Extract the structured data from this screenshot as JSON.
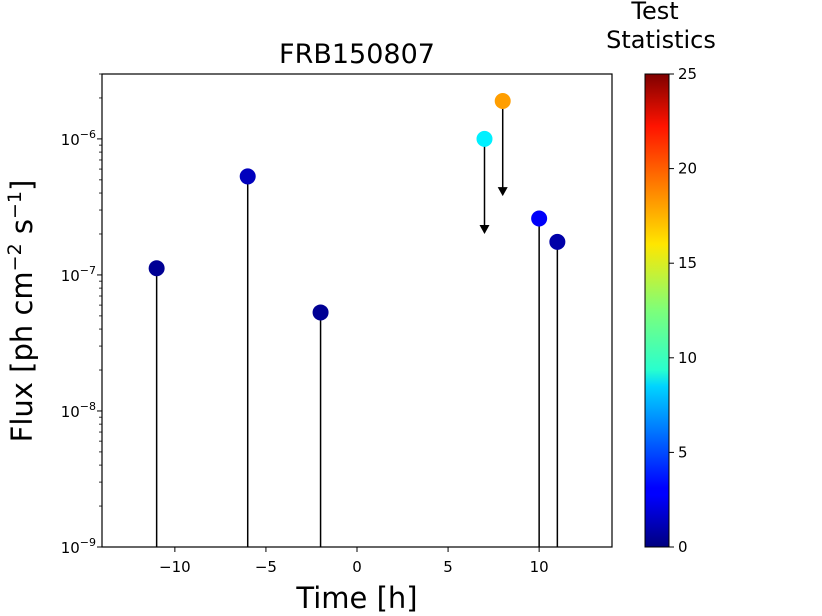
{
  "chart_data": {
    "type": "scatter",
    "title": "FRB150807",
    "xlabel": "Time [h]",
    "ylabel": "Flux [ph cm",
    "ylabel_sup1": "−2",
    "ylabel_mid": " s",
    "ylabel_sup2": "−1",
    "ylabel_end": "]",
    "xlim": [
      -14,
      14
    ],
    "ylim": [
      1e-09,
      3e-06
    ],
    "yscale": "log",
    "xticks": [
      -10,
      -5,
      0,
      5,
      10
    ],
    "xtick_labels": [
      "−10",
      "−5",
      "0",
      "5",
      "10"
    ],
    "yticks": [
      {
        "value": 1e-09,
        "base": "10",
        "exp": "−9"
      },
      {
        "value": 1e-08,
        "base": "10",
        "exp": "−8"
      },
      {
        "value": 1e-07,
        "base": "10",
        "exp": "−7"
      },
      {
        "value": 1e-06,
        "base": "10",
        "exp": "−6"
      }
    ],
    "points": [
      {
        "x": -11,
        "y": 1.12e-07,
        "ts": 0.5,
        "kind": "detection"
      },
      {
        "x": -6,
        "y": 5.3e-07,
        "ts": 1.5,
        "kind": "detection"
      },
      {
        "x": -2,
        "y": 5.3e-08,
        "ts": 0.5,
        "kind": "detection"
      },
      {
        "x": 7,
        "y": 1e-06,
        "ts": 9.0,
        "kind": "upper_limit"
      },
      {
        "x": 8,
        "y": 1.9e-06,
        "ts": 18.0,
        "kind": "upper_limit"
      },
      {
        "x": 10,
        "y": 2.6e-07,
        "ts": 3.0,
        "kind": "detection"
      },
      {
        "x": 11,
        "y": 1.75e-07,
        "ts": 1.0,
        "kind": "detection"
      }
    ],
    "colorbar": {
      "title_line1": "Test",
      "title_line2": "Statistics",
      "min": 0,
      "max": 25,
      "colormap": "jet",
      "ticks": [
        0,
        5,
        10,
        15,
        20,
        25
      ],
      "tick_labels": [
        "0",
        "5",
        "10",
        "15",
        "20",
        "25"
      ]
    },
    "grid": false,
    "legend": "none"
  }
}
